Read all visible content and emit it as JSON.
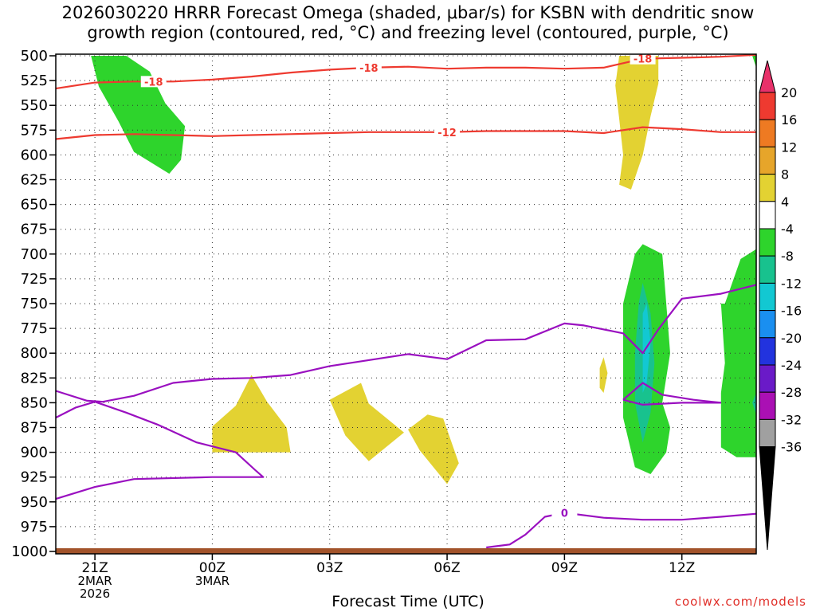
{
  "title": {
    "line1": "2026030220 HRRR Forecast Omega (shaded, μbar/s) for KSBN with dendritic snow",
    "line2": "growth region (contoured, red, °C) and freezing level (contoured, purple, °C)"
  },
  "chart_data": {
    "type": "time-height-cross-section",
    "xlabel": "Forecast Time (UTC)",
    "ylabel": "",
    "x_domain_hours": [
      20,
      37.9
    ],
    "ylim_hPa": [
      1000,
      500
    ],
    "y_ticks": [
      500,
      525,
      550,
      575,
      600,
      625,
      650,
      675,
      700,
      725,
      750,
      775,
      800,
      825,
      850,
      875,
      900,
      925,
      950,
      975,
      1000
    ],
    "x_ticks": [
      {
        "hour": 21,
        "lines": [
          "21Z",
          "2MAR",
          "2026"
        ]
      },
      {
        "hour": 24,
        "lines": [
          "00Z",
          "3MAR"
        ]
      },
      {
        "hour": 27,
        "lines": [
          "03Z"
        ]
      },
      {
        "hour": 30,
        "lines": [
          "06Z"
        ]
      },
      {
        "hour": 33,
        "lines": [
          "09Z"
        ]
      },
      {
        "hour": 36,
        "lines": [
          "12Z"
        ]
      }
    ],
    "grid": true,
    "colorbar": {
      "levels": [
        20,
        16,
        12,
        8,
        4,
        -4,
        -8,
        -12,
        -16,
        -20,
        -24,
        -28,
        -32,
        -36
      ],
      "colors": [
        "#e8316a",
        "#ee3a30",
        "#ee7a22",
        "#e6a52a",
        "#e3d232",
        "#ffffff",
        "#2ed42c",
        "#18c28e",
        "#12c8d2",
        "#1a8ff0",
        "#2233de",
        "#6a1ac8",
        "#aa10b4",
        "#a0a0a0",
        "#000000"
      ],
      "ticks": [
        "20",
        "16",
        "12",
        "8",
        "4",
        "-4",
        "-8",
        "-12",
        "-16",
        "-20",
        "-24",
        "-28",
        "-32",
        "-36"
      ]
    },
    "omega_regions": [
      {
        "name": "green-upper-left",
        "color": "#2ed42c",
        "value": "-4 to -8",
        "points": [
          [
            20.9,
            500
          ],
          [
            21.8,
            500
          ],
          [
            22.4,
            516
          ],
          [
            22.8,
            548
          ],
          [
            23.3,
            571
          ],
          [
            23.2,
            605
          ],
          [
            22.9,
            619
          ],
          [
            22.0,
            597
          ],
          [
            21.6,
            566
          ],
          [
            21.1,
            531
          ],
          [
            20.9,
            500
          ]
        ]
      },
      {
        "name": "yellow-upper-right",
        "color": "#e3d232",
        "value": "4 to 8",
        "points": [
          [
            34.4,
            500
          ],
          [
            35.4,
            500
          ],
          [
            35.4,
            528
          ],
          [
            35.2,
            561
          ],
          [
            35.0,
            600
          ],
          [
            34.7,
            635
          ],
          [
            34.4,
            630
          ],
          [
            34.5,
            600
          ],
          [
            34.4,
            564
          ],
          [
            34.3,
            530
          ],
          [
            34.4,
            500
          ]
        ]
      },
      {
        "name": "yellow-0Z",
        "color": "#e3d232",
        "value": "4 to 8",
        "points": [
          [
            24,
            874
          ],
          [
            24.6,
            853
          ],
          [
            25.0,
            822
          ],
          [
            25.4,
            849
          ],
          [
            25.9,
            875
          ],
          [
            26.0,
            900
          ],
          [
            25.0,
            900
          ],
          [
            24,
            900
          ]
        ]
      },
      {
        "name": "yellow-03Z",
        "color": "#e3d232",
        "value": "4 to 8",
        "points": [
          [
            27.0,
            847
          ],
          [
            27.8,
            830
          ],
          [
            28.0,
            851
          ],
          [
            28.9,
            880
          ],
          [
            28.0,
            909
          ],
          [
            27.4,
            883
          ],
          [
            27.0,
            847
          ]
        ]
      },
      {
        "name": "yellow-06Z",
        "color": "#e3d232",
        "value": "4 to 8",
        "points": [
          [
            29.0,
            877
          ],
          [
            29.5,
            862
          ],
          [
            29.9,
            866
          ],
          [
            30.3,
            911
          ],
          [
            30.0,
            932
          ],
          [
            29.3,
            898
          ],
          [
            29.0,
            877
          ]
        ]
      },
      {
        "name": "yellow-sliver",
        "color": "#e3d232",
        "value": "4 to 8",
        "points": [
          [
            33.9,
            815
          ],
          [
            34.0,
            804
          ],
          [
            34.1,
            820
          ],
          [
            34.0,
            840
          ],
          [
            33.9,
            835
          ]
        ]
      },
      {
        "name": "green-11Z",
        "color": "#2ed42c",
        "value": "-4 to -8",
        "points": [
          [
            34.5,
            750
          ],
          [
            34.8,
            700
          ],
          [
            35.0,
            690
          ],
          [
            35.5,
            700
          ],
          [
            35.6,
            750
          ],
          [
            35.7,
            800
          ],
          [
            35.5,
            850
          ],
          [
            35.7,
            875
          ],
          [
            35.6,
            900
          ],
          [
            35.2,
            922
          ],
          [
            34.8,
            915
          ],
          [
            34.5,
            865
          ],
          [
            34.5,
            800
          ]
        ]
      },
      {
        "name": "teal-11Z",
        "color": "#18c28e",
        "value": "-8 to -12",
        "points": [
          [
            34.9,
            749
          ],
          [
            35.0,
            729
          ],
          [
            35.2,
            760
          ],
          [
            35.3,
            810
          ],
          [
            35.2,
            860
          ],
          [
            35.0,
            890
          ],
          [
            34.8,
            850
          ],
          [
            34.8,
            800
          ]
        ]
      },
      {
        "name": "cyan-11Z",
        "color": "#12c8d2",
        "value": "-12 to -16",
        "points": [
          [
            35.0,
            760
          ],
          [
            35.1,
            750
          ],
          [
            35.2,
            790
          ],
          [
            35.1,
            830
          ],
          [
            35.0,
            840
          ],
          [
            35.0,
            800
          ]
        ]
      },
      {
        "name": "green-right",
        "color": "#2ed42c",
        "value": "-4 to -8",
        "points": [
          [
            37.1,
            750
          ],
          [
            37.5,
            705
          ],
          [
            37.9,
            695
          ],
          [
            37.9,
            905
          ],
          [
            37.4,
            905
          ],
          [
            37.0,
            895
          ],
          [
            37.0,
            840
          ],
          [
            37.1,
            810
          ],
          [
            37.0,
            750
          ]
        ]
      },
      {
        "name": "green-right-top",
        "color": "#2ed42c",
        "value": "-4 to -8",
        "points": [
          [
            37.8,
            500
          ],
          [
            37.9,
            500
          ],
          [
            37.9,
            512
          ]
        ]
      },
      {
        "name": "teal-right",
        "color": "#18c28e",
        "value": "-8 to -12",
        "points": [
          [
            37.9,
            840
          ],
          [
            37.8,
            850
          ],
          [
            37.9,
            862
          ]
        ]
      }
    ],
    "dgz_contours": [
      {
        "label": "-18",
        "color": "#ee3a30",
        "label_at": [
          22.5,
          526
        ],
        "label2_at": [
          28.0,
          512
        ],
        "label3_at": [
          35.0,
          503
        ],
        "points": [
          [
            20,
            533
          ],
          [
            21,
            527
          ],
          [
            22,
            526
          ],
          [
            23,
            526
          ],
          [
            24,
            524
          ],
          [
            25,
            521
          ],
          [
            26,
            517
          ],
          [
            27,
            514
          ],
          [
            28,
            512
          ],
          [
            29,
            511
          ],
          [
            30,
            513
          ],
          [
            31,
            512
          ],
          [
            32,
            512
          ],
          [
            33,
            513
          ],
          [
            34,
            512
          ],
          [
            35,
            503
          ],
          [
            36,
            502
          ],
          [
            37,
            501
          ],
          [
            37.9,
            499
          ]
        ]
      },
      {
        "label": "-12",
        "color": "#ee3a30",
        "label_at": [
          30.0,
          577
        ],
        "points": [
          [
            20,
            584
          ],
          [
            21,
            580
          ],
          [
            22,
            579
          ],
          [
            23,
            580
          ],
          [
            24,
            581
          ],
          [
            25,
            580
          ],
          [
            26,
            579
          ],
          [
            27,
            578
          ],
          [
            28,
            577
          ],
          [
            29,
            577
          ],
          [
            30,
            577
          ],
          [
            31,
            576
          ],
          [
            32,
            576
          ],
          [
            33,
            576
          ],
          [
            34,
            578
          ],
          [
            35,
            572
          ],
          [
            36,
            574
          ],
          [
            37,
            577
          ],
          [
            37.9,
            577
          ]
        ]
      }
    ],
    "freezing_contours": [
      {
        "label": "",
        "color": "#9a10c0",
        "points": [
          [
            20,
            838
          ],
          [
            20.8,
            848
          ],
          [
            21.2,
            849
          ],
          [
            22,
            843
          ],
          [
            23,
            830
          ],
          [
            24,
            826
          ],
          [
            25,
            825
          ],
          [
            26,
            822
          ],
          [
            27,
            813
          ],
          [
            28,
            807
          ],
          [
            29,
            801
          ],
          [
            30,
            806
          ],
          [
            31,
            787
          ],
          [
            32,
            786
          ],
          [
            33,
            770
          ],
          [
            33.5,
            772
          ],
          [
            34.5,
            780
          ],
          [
            35,
            800
          ],
          [
            35.4,
            776
          ],
          [
            36,
            745
          ],
          [
            37,
            740
          ],
          [
            37.9,
            731
          ]
        ]
      },
      {
        "label": "",
        "color": "#9a10c0",
        "points": [
          [
            20,
            865
          ],
          [
            20.5,
            855
          ],
          [
            21,
            849
          ],
          [
            21.8,
            860
          ],
          [
            22.6,
            872
          ],
          [
            23.6,
            890
          ],
          [
            24.6,
            900
          ],
          [
            25.1,
            918
          ],
          [
            25.3,
            925
          ],
          [
            24,
            925
          ],
          [
            22,
            927
          ],
          [
            21,
            935
          ],
          [
            20,
            947
          ]
        ]
      },
      {
        "label": "",
        "color": "#9a10c0",
        "points": [
          [
            34.5,
            847
          ],
          [
            35.0,
            830
          ],
          [
            35.5,
            842
          ],
          [
            36.3,
            847
          ],
          [
            37.0,
            850
          ]
        ]
      },
      {
        "label": "",
        "color": "#9a10c0",
        "points": [
          [
            34.5,
            847
          ],
          [
            35.0,
            852
          ],
          [
            36.0,
            850
          ],
          [
            37.0,
            850
          ]
        ]
      },
      {
        "label": "0",
        "color": "#9a10c0",
        "label_at": [
          33.0,
          961
        ],
        "points": [
          [
            31.0,
            996
          ],
          [
            31.6,
            993
          ],
          [
            32.0,
            983
          ],
          [
            32.5,
            965
          ],
          [
            33.0,
            961
          ],
          [
            34.0,
            966
          ],
          [
            35.0,
            968
          ],
          [
            36.0,
            968
          ],
          [
            37.0,
            965
          ],
          [
            37.9,
            962
          ]
        ]
      }
    ]
  },
  "xlabel": "Forecast Time (UTC)",
  "credit": "coolwx.com/models"
}
